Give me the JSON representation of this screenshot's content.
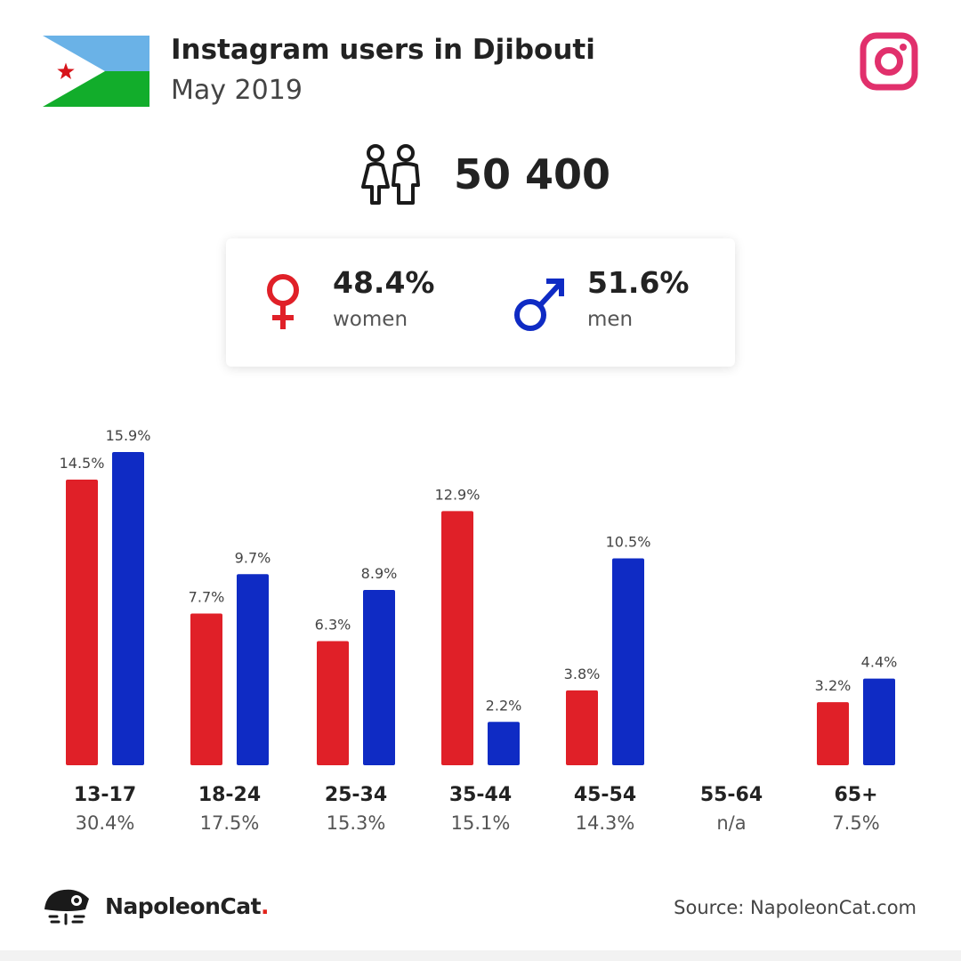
{
  "header": {
    "title": "Instagram users in Djibouti",
    "subtitle": "May 2019"
  },
  "flag": {
    "country": "Djibouti",
    "colors": {
      "top": "#6ab2e7",
      "bottom": "#12ad2b",
      "triangle": "#ffffff",
      "star": "#d7141a"
    }
  },
  "total_users": "50 400",
  "gender": {
    "women": {
      "pct": "48.4%",
      "label": "women",
      "color": "#e02028"
    },
    "men": {
      "pct": "51.6%",
      "label": "men",
      "color": "#0f2bc4"
    }
  },
  "chart_data": {
    "type": "bar",
    "categories": [
      "13-17",
      "18-24",
      "25-34",
      "35-44",
      "45-54",
      "55-64",
      "65+"
    ],
    "category_totals": [
      "30.4%",
      "17.5%",
      "15.3%",
      "15.1%",
      "14.3%",
      "n/a",
      "7.5%"
    ],
    "series": [
      {
        "name": "women",
        "color": "#e02028",
        "values": [
          14.5,
          7.7,
          6.3,
          12.9,
          3.8,
          null,
          3.2
        ]
      },
      {
        "name": "men",
        "color": "#0f2bc4",
        "values": [
          15.9,
          9.7,
          8.9,
          2.2,
          10.5,
          null,
          4.4
        ]
      }
    ],
    "value_suffix": "%",
    "ylim": [
      0,
      15.9
    ]
  },
  "footer": {
    "brand": "NapoleonCat",
    "brand_dot": ".",
    "source": "Source: NapoleonCat.com"
  },
  "icons": {
    "instagram": "instagram-icon",
    "people": "people-icon",
    "female": "female-symbol-icon",
    "male": "male-symbol-icon",
    "brand": "napoleoncat-logo-icon"
  }
}
